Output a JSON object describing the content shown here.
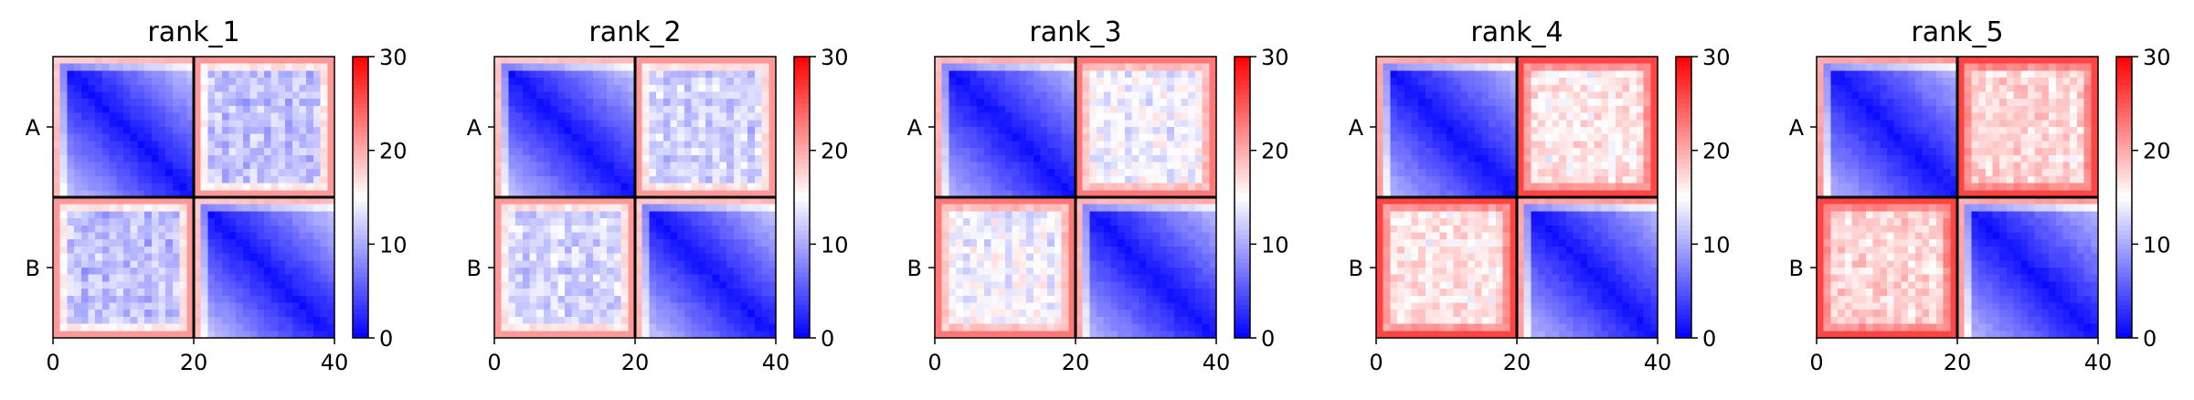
{
  "chart_data": [
    {
      "type": "heatmap",
      "title": "rank_1",
      "size": 40,
      "blocks": [
        "A",
        "B"
      ],
      "block_boundary": 20,
      "xticks": [
        0,
        20,
        40
      ],
      "colorbar": {
        "min": 0,
        "max": 30,
        "ticks": [
          0,
          10,
          20,
          30
        ],
        "cmap": "bwr",
        "colors": [
          "#0000ff",
          "#ffffff",
          "#ff0000"
        ]
      },
      "diag_block": {
        "min": 1,
        "max": 20,
        "decay": 0.6
      },
      "off_block": {
        "mean": 12,
        "var": 2,
        "edge": 21
      }
    },
    {
      "type": "heatmap",
      "title": "rank_2",
      "size": 40,
      "blocks": [
        "A",
        "B"
      ],
      "block_boundary": 20,
      "xticks": [
        0,
        20,
        40
      ],
      "colorbar": {
        "min": 0,
        "max": 30,
        "ticks": [
          0,
          10,
          20,
          30
        ],
        "cmap": "bwr",
        "colors": [
          "#0000ff",
          "#ffffff",
          "#ff0000"
        ]
      },
      "diag_block": {
        "min": 1,
        "max": 20,
        "decay": 0.6
      },
      "off_block": {
        "mean": 13,
        "var": 2,
        "edge": 21
      }
    },
    {
      "type": "heatmap",
      "title": "rank_3",
      "size": 40,
      "blocks": [
        "A",
        "B"
      ],
      "block_boundary": 20,
      "xticks": [
        0,
        20,
        40
      ],
      "colorbar": {
        "min": 0,
        "max": 30,
        "ticks": [
          0,
          10,
          20,
          30
        ],
        "cmap": "bwr",
        "colors": [
          "#0000ff",
          "#ffffff",
          "#ff0000"
        ]
      },
      "diag_block": {
        "min": 1,
        "max": 21,
        "decay": 0.55
      },
      "off_block": {
        "mean": 15,
        "var": 2,
        "edge": 23
      }
    },
    {
      "type": "heatmap",
      "title": "rank_4",
      "size": 40,
      "blocks": [
        "A",
        "B"
      ],
      "block_boundary": 20,
      "xticks": [
        0,
        20,
        40
      ],
      "colorbar": {
        "min": 0,
        "max": 30,
        "ticks": [
          0,
          10,
          20,
          30
        ],
        "cmap": "bwr",
        "colors": [
          "#0000ff",
          "#ffffff",
          "#ff0000"
        ]
      },
      "diag_block": {
        "min": 1,
        "max": 22,
        "decay": 0.55
      },
      "off_block": {
        "mean": 17,
        "var": 2,
        "edge": 26
      }
    },
    {
      "type": "heatmap",
      "title": "rank_5",
      "size": 40,
      "blocks": [
        "A",
        "B"
      ],
      "block_boundary": 20,
      "xticks": [
        0,
        20,
        40
      ],
      "colorbar": {
        "min": 0,
        "max": 30,
        "ticks": [
          0,
          10,
          20,
          30
        ],
        "cmap": "bwr",
        "colors": [
          "#0000ff",
          "#ffffff",
          "#ff0000"
        ]
      },
      "diag_block": {
        "min": 1,
        "max": 22,
        "decay": 0.55
      },
      "off_block": {
        "mean": 18,
        "var": 2,
        "edge": 26
      }
    }
  ]
}
